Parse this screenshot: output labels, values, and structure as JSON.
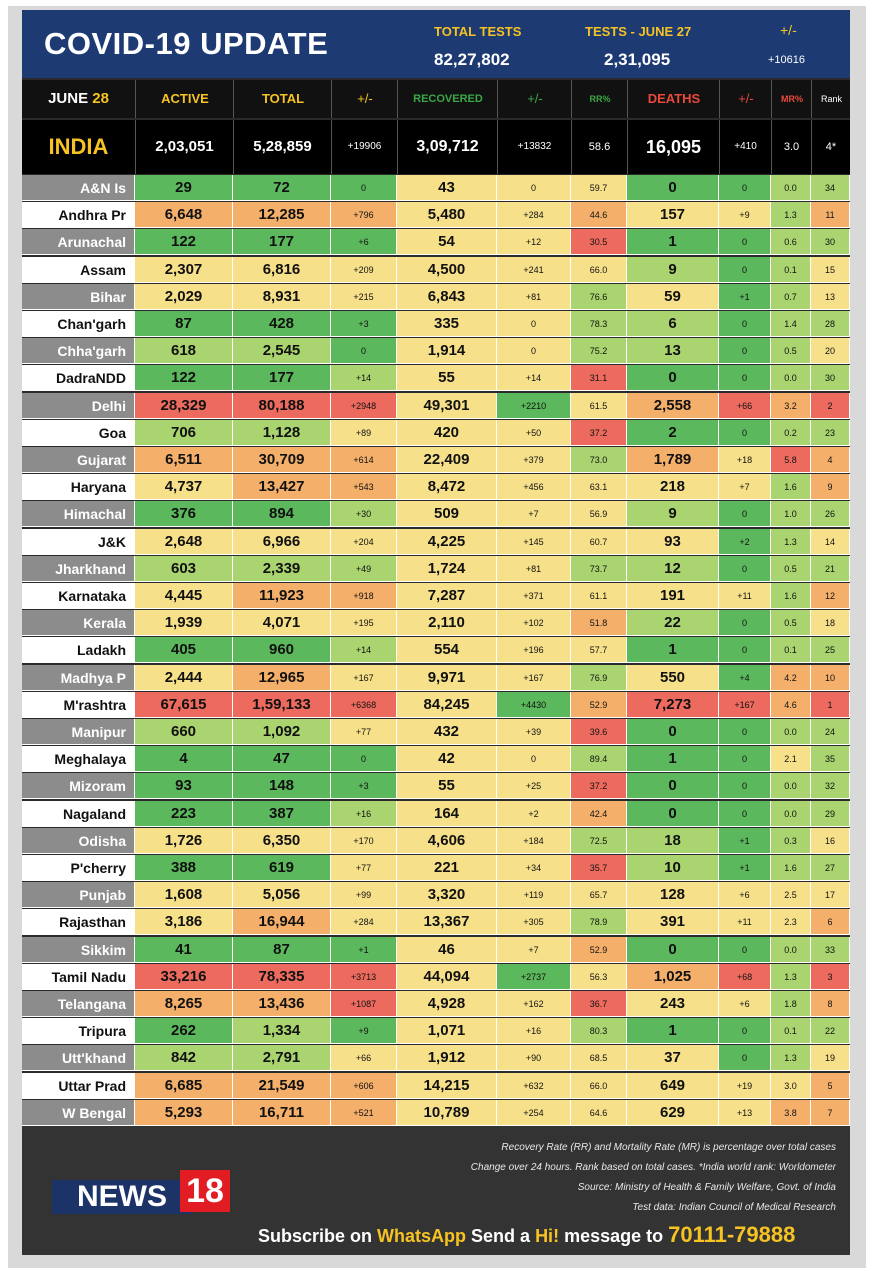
{
  "header": {
    "title": "COVID-19 UPDATE",
    "total_tests_label": "TOTAL TESTS",
    "total_tests_value": "82,27,802",
    "tests_date_label": "TESTS - JUNE 27",
    "tests_date_value": "2,31,095",
    "change_label": "+/-",
    "change_value": "+10616"
  },
  "columns": {
    "date_day": "JUNE",
    "date_num": "28",
    "active": "ACTIVE",
    "total": "TOTAL",
    "chg": "+/-",
    "recovered": "RECOVERED",
    "rchg": "+/-",
    "rr": "RR%",
    "deaths": "DEATHS",
    "dchg": "+/-",
    "mr": "MR%",
    "rank": "Rank"
  },
  "india": {
    "name": "INDIA",
    "active": "2,03,051",
    "total": "5,28,859",
    "chg": "+19906",
    "recovered": "3,09,712",
    "rchg": "+13832",
    "rr": "58.6",
    "deaths": "16,095",
    "dchg": "+410",
    "mr": "3.0",
    "rank": "4*"
  },
  "states": [
    {
      "name": "A&N Is",
      "active": "29",
      "total": "72",
      "chg": "0",
      "rec": "43",
      "rchg": "0",
      "rr": "59.7",
      "deaths": "0",
      "dchg": "0",
      "mr": "0.0",
      "rank": "34"
    },
    {
      "name": "Andhra Pr",
      "active": "6,648",
      "total": "12,285",
      "chg": "+796",
      "rec": "5,480",
      "rchg": "+284",
      "rr": "44.6",
      "deaths": "157",
      "dchg": "+9",
      "mr": "1.3",
      "rank": "11"
    },
    {
      "name": "Arunachal",
      "active": "122",
      "total": "177",
      "chg": "+6",
      "rec": "54",
      "rchg": "+12",
      "rr": "30.5",
      "deaths": "1",
      "dchg": "0",
      "mr": "0.6",
      "rank": "30"
    },
    {
      "name": "Assam",
      "active": "2,307",
      "total": "6,816",
      "chg": "+209",
      "rec": "4,500",
      "rchg": "+241",
      "rr": "66.0",
      "deaths": "9",
      "dchg": "0",
      "mr": "0.1",
      "rank": "15"
    },
    {
      "name": "Bihar",
      "active": "2,029",
      "total": "8,931",
      "chg": "+215",
      "rec": "6,843",
      "rchg": "+81",
      "rr": "76.6",
      "deaths": "59",
      "dchg": "+1",
      "mr": "0.7",
      "rank": "13"
    },
    {
      "name": "Chan'garh",
      "active": "87",
      "total": "428",
      "chg": "+3",
      "rec": "335",
      "rchg": "0",
      "rr": "78.3",
      "deaths": "6",
      "dchg": "0",
      "mr": "1.4",
      "rank": "28"
    },
    {
      "name": "Chha'garh",
      "active": "618",
      "total": "2,545",
      "chg": "0",
      "rec": "1,914",
      "rchg": "0",
      "rr": "75.2",
      "deaths": "13",
      "dchg": "0",
      "mr": "0.5",
      "rank": "20"
    },
    {
      "name": "DadraNDD",
      "active": "122",
      "total": "177",
      "chg": "+14",
      "rec": "55",
      "rchg": "+14",
      "rr": "31.1",
      "deaths": "0",
      "dchg": "0",
      "mr": "0.0",
      "rank": "30"
    },
    {
      "name": "Delhi",
      "active": "28,329",
      "total": "80,188",
      "chg": "+2948",
      "rec": "49,301",
      "rchg": "+2210",
      "rr": "61.5",
      "deaths": "2,558",
      "dchg": "+66",
      "mr": "3.2",
      "rank": "2"
    },
    {
      "name": "Goa",
      "active": "706",
      "total": "1,128",
      "chg": "+89",
      "rec": "420",
      "rchg": "+50",
      "rr": "37.2",
      "deaths": "2",
      "dchg": "0",
      "mr": "0.2",
      "rank": "23"
    },
    {
      "name": "Gujarat",
      "active": "6,511",
      "total": "30,709",
      "chg": "+614",
      "rec": "22,409",
      "rchg": "+379",
      "rr": "73.0",
      "deaths": "1,789",
      "dchg": "+18",
      "mr": "5.8",
      "rank": "4"
    },
    {
      "name": "Haryana",
      "active": "4,737",
      "total": "13,427",
      "chg": "+543",
      "rec": "8,472",
      "rchg": "+456",
      "rr": "63.1",
      "deaths": "218",
      "dchg": "+7",
      "mr": "1.6",
      "rank": "9"
    },
    {
      "name": "Himachal",
      "active": "376",
      "total": "894",
      "chg": "+30",
      "rec": "509",
      "rchg": "+7",
      "rr": "56.9",
      "deaths": "9",
      "dchg": "0",
      "mr": "1.0",
      "rank": "26"
    },
    {
      "name": "J&K",
      "active": "2,648",
      "total": "6,966",
      "chg": "+204",
      "rec": "4,225",
      "rchg": "+145",
      "rr": "60.7",
      "deaths": "93",
      "dchg": "+2",
      "mr": "1.3",
      "rank": "14"
    },
    {
      "name": "Jharkhand",
      "active": "603",
      "total": "2,339",
      "chg": "+49",
      "rec": "1,724",
      "rchg": "+81",
      "rr": "73.7",
      "deaths": "12",
      "dchg": "0",
      "mr": "0.5",
      "rank": "21"
    },
    {
      "name": "Karnataka",
      "active": "4,445",
      "total": "11,923",
      "chg": "+918",
      "rec": "7,287",
      "rchg": "+371",
      "rr": "61.1",
      "deaths": "191",
      "dchg": "+11",
      "mr": "1.6",
      "rank": "12"
    },
    {
      "name": "Kerala",
      "active": "1,939",
      "total": "4,071",
      "chg": "+195",
      "rec": "2,110",
      "rchg": "+102",
      "rr": "51.8",
      "deaths": "22",
      "dchg": "0",
      "mr": "0.5",
      "rank": "18"
    },
    {
      "name": "Ladakh",
      "active": "405",
      "total": "960",
      "chg": "+14",
      "rec": "554",
      "rchg": "+196",
      "rr": "57.7",
      "deaths": "1",
      "dchg": "0",
      "mr": "0.1",
      "rank": "25"
    },
    {
      "name": "Madhya P",
      "active": "2,444",
      "total": "12,965",
      "chg": "+167",
      "rec": "9,971",
      "rchg": "+167",
      "rr": "76.9",
      "deaths": "550",
      "dchg": "+4",
      "mr": "4.2",
      "rank": "10"
    },
    {
      "name": "M'rashtra",
      "active": "67,615",
      "total": "1,59,133",
      "chg": "+6368",
      "rec": "84,245",
      "rchg": "+4430",
      "rr": "52.9",
      "deaths": "7,273",
      "dchg": "+167",
      "mr": "4.6",
      "rank": "1"
    },
    {
      "name": "Manipur",
      "active": "660",
      "total": "1,092",
      "chg": "+77",
      "rec": "432",
      "rchg": "+39",
      "rr": "39.6",
      "deaths": "0",
      "dchg": "0",
      "mr": "0.0",
      "rank": "24"
    },
    {
      "name": "Meghalaya",
      "active": "4",
      "total": "47",
      "chg": "0",
      "rec": "42",
      "rchg": "0",
      "rr": "89.4",
      "deaths": "1",
      "dchg": "0",
      "mr": "2.1",
      "rank": "35"
    },
    {
      "name": "Mizoram",
      "active": "93",
      "total": "148",
      "chg": "+3",
      "rec": "55",
      "rchg": "+25",
      "rr": "37.2",
      "deaths": "0",
      "dchg": "0",
      "mr": "0.0",
      "rank": "32"
    },
    {
      "name": "Nagaland",
      "active": "223",
      "total": "387",
      "chg": "+16",
      "rec": "164",
      "rchg": "+2",
      "rr": "42.4",
      "deaths": "0",
      "dchg": "0",
      "mr": "0.0",
      "rank": "29"
    },
    {
      "name": "Odisha",
      "active": "1,726",
      "total": "6,350",
      "chg": "+170",
      "rec": "4,606",
      "rchg": "+184",
      "rr": "72.5",
      "deaths": "18",
      "dchg": "+1",
      "mr": "0.3",
      "rank": "16"
    },
    {
      "name": "P'cherry",
      "active": "388",
      "total": "619",
      "chg": "+77",
      "rec": "221",
      "rchg": "+34",
      "rr": "35.7",
      "deaths": "10",
      "dchg": "+1",
      "mr": "1.6",
      "rank": "27"
    },
    {
      "name": "Punjab",
      "active": "1,608",
      "total": "5,056",
      "chg": "+99",
      "rec": "3,320",
      "rchg": "+119",
      "rr": "65.7",
      "deaths": "128",
      "dchg": "+6",
      "mr": "2.5",
      "rank": "17"
    },
    {
      "name": "Rajasthan",
      "active": "3,186",
      "total": "16,944",
      "chg": "+284",
      "rec": "13,367",
      "rchg": "+305",
      "rr": "78.9",
      "deaths": "391",
      "dchg": "+11",
      "mr": "2.3",
      "rank": "6"
    },
    {
      "name": "Sikkim",
      "active": "41",
      "total": "87",
      "chg": "+1",
      "rec": "46",
      "rchg": "+7",
      "rr": "52.9",
      "deaths": "0",
      "dchg": "0",
      "mr": "0.0",
      "rank": "33"
    },
    {
      "name": "Tamil Nadu",
      "active": "33,216",
      "total": "78,335",
      "chg": "+3713",
      "rec": "44,094",
      "rchg": "+2737",
      "rr": "56.3",
      "deaths": "1,025",
      "dchg": "+68",
      "mr": "1.3",
      "rank": "3"
    },
    {
      "name": "Telangana",
      "active": "8,265",
      "total": "13,436",
      "chg": "+1087",
      "rec": "4,928",
      "rchg": "+162",
      "rr": "36.7",
      "deaths": "243",
      "dchg": "+6",
      "mr": "1.8",
      "rank": "8"
    },
    {
      "name": "Tripura",
      "active": "262",
      "total": "1,334",
      "chg": "+9",
      "rec": "1,071",
      "rchg": "+16",
      "rr": "80.3",
      "deaths": "1",
      "dchg": "0",
      "mr": "0.1",
      "rank": "22"
    },
    {
      "name": "Utt'khand",
      "active": "842",
      "total": "2,791",
      "chg": "+66",
      "rec": "1,912",
      "rchg": "+90",
      "rr": "68.5",
      "deaths": "37",
      "dchg": "0",
      "mr": "1.3",
      "rank": "19"
    },
    {
      "name": "Uttar Prad",
      "active": "6,685",
      "total": "21,549",
      "chg": "+606",
      "rec": "14,215",
      "rchg": "+632",
      "rr": "66.0",
      "deaths": "649",
      "dchg": "+19",
      "mr": "3.0",
      "rank": "5"
    },
    {
      "name": "W Bengal",
      "active": "5,293",
      "total": "16,711",
      "chg": "+521",
      "rec": "10,789",
      "rchg": "+254",
      "rr": "64.6",
      "deaths": "629",
      "dchg": "+13",
      "mr": "3.8",
      "rank": "7"
    }
  ],
  "footer": {
    "note1": "Recovery Rate (RR) and Mortality Rate (MR) is percentage over total cases",
    "note2": "Change over 24 hours. Rank based on total cases. *India world rank: Worldometer",
    "note3": "Source: Ministry of Health & Family Welfare, Govt. of India",
    "note4": "Test data: Indian Council of Medical Research",
    "logo_news": "NEWS",
    "logo_num": "18",
    "sub_1": "Subscribe on ",
    "sub_whatsapp": "WhatsApp",
    "sub_2": " Send a ",
    "sub_hi": "Hi!",
    "sub_3": " message to ",
    "sub_number": "70111-79888"
  },
  "colors": {
    "header_bg": "#1d3a73",
    "accent_yellow": "#f6c323",
    "green": "#5cb85c",
    "light_green": "#a9d46f",
    "yellow": "#f7e08a",
    "orange": "#f4b06b",
    "red": "#ec6b5e"
  }
}
